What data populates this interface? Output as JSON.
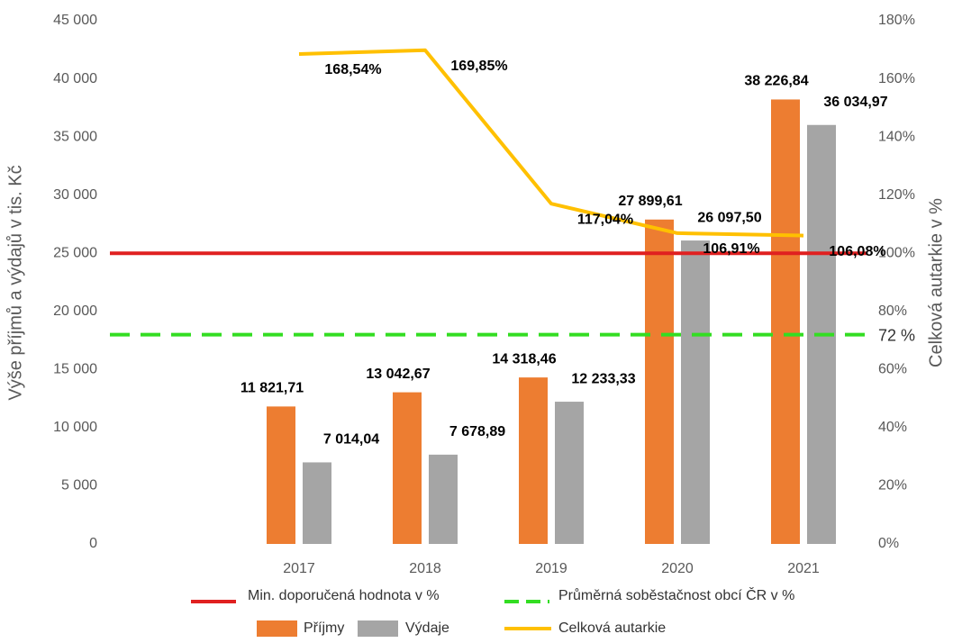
{
  "chart_data": {
    "type": "bar",
    "y_label": "Výše příjmů a výdajů v tis. Kč",
    "y2_label": "Celková autarkie v %",
    "categories": [
      null,
      "2017",
      "2018",
      "2019",
      "2020",
      "2021"
    ],
    "ylim": [
      0,
      45000
    ],
    "yticks": [
      0,
      {
        "value": 5000,
        "label": "5 000"
      },
      {
        "value": 10000,
        "label": "10 000"
      },
      {
        "value": 15000,
        "label": "15 000"
      },
      {
        "value": 20000,
        "label": "20 000"
      },
      {
        "value": 25000,
        "label": "25 000"
      },
      {
        "value": 30000,
        "label": "30 000"
      },
      {
        "value": 35000,
        "label": "35 000"
      },
      {
        "value": 40000,
        "label": "40 000"
      },
      {
        "value": 45000,
        "label": "45 000"
      }
    ],
    "y2lim": [
      0,
      180
    ],
    "y2ticks": [
      {
        "value": 0,
        "label": "0%"
      },
      {
        "value": 20,
        "label": "20%"
      },
      {
        "value": 40,
        "label": "40%"
      },
      {
        "value": 60,
        "label": "60%"
      },
      {
        "value": 80,
        "label": "80%"
      },
      {
        "value": 100,
        "label": "100%"
      },
      {
        "value": 120,
        "label": "120%"
      },
      {
        "value": 140,
        "label": "140%"
      },
      {
        "value": 160,
        "label": "160%"
      },
      {
        "value": 180,
        "label": "180%"
      }
    ],
    "series": [
      {
        "name": "Příjmy",
        "type": "bar",
        "color": "#ed7d31",
        "values": [
          null,
          11821.71,
          13042.67,
          14318.46,
          27899.61,
          38226.84
        ],
        "value_labels": [
          null,
          "11 821,71",
          "13 042,67",
          "14 318,46",
          "27 899,61",
          "38 226,84"
        ]
      },
      {
        "name": "Výdaje",
        "type": "bar",
        "color": "#a5a5a5",
        "values": [
          null,
          7014.04,
          7678.89,
          12233.33,
          26097.5,
          36034.97
        ],
        "value_labels": [
          null,
          "7 014,04",
          "7 678,89",
          "12 233,33",
          "26 097,50",
          "36 034,97"
        ]
      },
      {
        "name": "Celková autarkie",
        "type": "line",
        "axis": "y2",
        "color": "#ffc000",
        "values": [
          null,
          168.54,
          169.85,
          117.04,
          106.91,
          106.08
        ],
        "value_labels": [
          null,
          "168,54%",
          "169,85%",
          "117,04%",
          "106,91%",
          "106,08%"
        ]
      }
    ],
    "reference_lines": [
      {
        "name": "Min. doporučená hodnota v %",
        "axis": "y2",
        "value": 100,
        "color": "#e02020",
        "dashed": false
      },
      {
        "name": "Průměrná soběstačnost obcí ČR v %",
        "axis": "y2",
        "value": 72,
        "value_label": "72 %",
        "color": "#33dd22",
        "dashed": true
      }
    ]
  }
}
